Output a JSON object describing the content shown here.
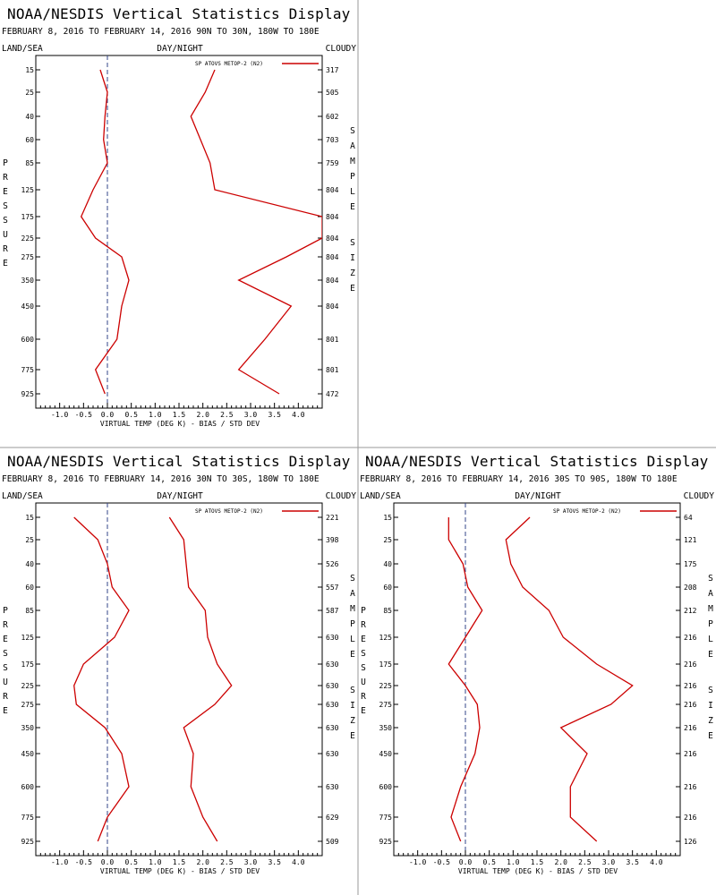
{
  "colors": {
    "background": "#ffffff",
    "line": "#cc0000",
    "frame": "#000000",
    "zero_line": "#334488",
    "divider": "#999999"
  },
  "panels": [
    {
      "title": "NOAA/NESDIS Vertical Statistics Display",
      "subtitle": "FEBRUARY 8, 2016 TO FEBRUARY 14, 2016 90N TO 30N, 180W TO 180E",
      "left_header": "LAND/SEA",
      "center_header": "DAY/NIGHT",
      "right_header": "CLOUDY",
      "y_label": "PRESSURE",
      "right_label_words": [
        "SAMPLE",
        "SIZE"
      ],
      "legend": "SP ATOVS METOP-2 (N2)",
      "x_axis_label": "VIRTUAL TEMP (DEG K) - BIAS / STD DEV",
      "x_ticks": [
        "-1.0",
        "-0.5",
        "0.0",
        "0.5",
        "1.0",
        "1.5",
        "2.0",
        "2.5",
        "3.0",
        "3.5",
        "4.0"
      ],
      "pressure_labels": [
        "15",
        "25",
        "40",
        "60",
        "85",
        "125",
        "175",
        "225",
        "275",
        "350",
        "450",
        "600",
        "775",
        "925"
      ],
      "sample_sizes": [
        "317",
        "505",
        "602",
        "703",
        "759",
        "804",
        "804",
        "804",
        "804",
        "804",
        "804",
        "801",
        "801",
        "472"
      ],
      "chart_data": {
        "type": "line",
        "title": "NOAA/NESDIS Vertical Statistics Display",
        "xlabel": "VIRTUAL TEMP (DEG K) - BIAS / STD DEV",
        "ylabel": "PRESSURE",
        "xlim": [
          -1.5,
          4.5
        ],
        "y": [
          15,
          25,
          40,
          60,
          85,
          125,
          175,
          225,
          275,
          350,
          450,
          600,
          775,
          925
        ],
        "series": [
          {
            "name": "SP ATOVS METOP-2 (N2)",
            "kind": "bias",
            "values": [
              -0.15,
              0.0,
              -0.05,
              -0.08,
              0.0,
              -0.3,
              -0.55,
              -0.25,
              0.3,
              0.45,
              0.3,
              0.2,
              -0.25,
              -0.05
            ]
          },
          {
            "name": "SP ATOVS METOP-2 (N2)",
            "kind": "std_dev",
            "values": [
              2.25,
              2.05,
              1.75,
              1.95,
              2.15,
              2.25,
              4.5,
              4.5,
              3.75,
              2.75,
              3.85,
              3.3,
              2.75,
              3.6
            ]
          }
        ]
      }
    },
    {
      "title": "NOAA/NESDIS Vertical Statistics Display",
      "subtitle": "FEBRUARY 8, 2016 TO FEBRUARY 14, 2016 30N TO 30S, 180W TO 180E",
      "left_header": "LAND/SEA",
      "center_header": "DAY/NIGHT",
      "right_header": "CLOUDY",
      "y_label": "PRESSURE",
      "right_label_words": [
        "SAMPLE",
        "SIZE"
      ],
      "legend": "SP ATOVS METOP-2 (N2)",
      "x_axis_label": "VIRTUAL TEMP (DEG K) - BIAS / STD DEV",
      "x_ticks": [
        "-1.0",
        "-0.5",
        "0.0",
        "0.5",
        "1.0",
        "1.5",
        "2.0",
        "2.5",
        "3.0",
        "3.5",
        "4.0"
      ],
      "pressure_labels": [
        "15",
        "25",
        "40",
        "60",
        "85",
        "125",
        "175",
        "225",
        "275",
        "350",
        "450",
        "600",
        "775",
        "925"
      ],
      "sample_sizes": [
        "221",
        "398",
        "526",
        "557",
        "587",
        "630",
        "630",
        "630",
        "630",
        "630",
        "630",
        "630",
        "629",
        "509"
      ],
      "chart_data": {
        "type": "line",
        "title": "NOAA/NESDIS Vertical Statistics Display",
        "xlabel": "VIRTUAL TEMP (DEG K) - BIAS / STD DEV",
        "ylabel": "PRESSURE",
        "xlim": [
          -1.5,
          4.5
        ],
        "y": [
          15,
          25,
          40,
          60,
          85,
          125,
          175,
          225,
          275,
          350,
          450,
          600,
          775,
          925
        ],
        "series": [
          {
            "name": "SP ATOVS METOP-2 (N2)",
            "kind": "bias",
            "values": [
              -0.7,
              -0.2,
              0.0,
              0.1,
              0.45,
              0.15,
              -0.5,
              -0.7,
              -0.65,
              -0.05,
              0.3,
              0.45,
              0.0,
              -0.2
            ]
          },
          {
            "name": "SP ATOVS METOP-2 (N2)",
            "kind": "std_dev",
            "values": [
              1.3,
              1.6,
              1.65,
              1.7,
              2.05,
              2.1,
              2.3,
              2.6,
              2.25,
              1.6,
              1.8,
              1.75,
              2.0,
              2.3
            ]
          }
        ]
      }
    },
    {
      "title": "NOAA/NESDIS Vertical Statistics Display",
      "subtitle": "FEBRUARY 8, 2016 TO FEBRUARY 14, 2016 30S TO 90S, 180W TO 180E",
      "left_header": "LAND/SEA",
      "center_header": "DAY/NIGHT",
      "right_header": "CLOUDY",
      "y_label": "PRESSURE",
      "right_label_words": [
        "SAMPLE",
        "SIZE"
      ],
      "legend": "SP ATOVS METOP-2 (N2)",
      "x_axis_label": "VIRTUAL TEMP (DEG K) - BIAS / STD DEV",
      "x_ticks": [
        "-1.0",
        "-0.5",
        "0.0",
        "0.5",
        "1.0",
        "1.5",
        "2.0",
        "2.5",
        "3.0",
        "3.5",
        "4.0"
      ],
      "pressure_labels": [
        "15",
        "25",
        "40",
        "60",
        "85",
        "125",
        "175",
        "225",
        "275",
        "350",
        "450",
        "600",
        "775",
        "925"
      ],
      "sample_sizes": [
        "64",
        "121",
        "175",
        "208",
        "212",
        "216",
        "216",
        "216",
        "216",
        "216",
        "216",
        "216",
        "216",
        "126"
      ],
      "chart_data": {
        "type": "line",
        "title": "NOAA/NESDIS Vertical Statistics Display",
        "xlabel": "VIRTUAL TEMP (DEG K) - BIAS / STD DEV",
        "ylabel": "PRESSURE",
        "xlim": [
          -1.5,
          4.5
        ],
        "y": [
          15,
          25,
          40,
          60,
          85,
          125,
          175,
          225,
          275,
          350,
          450,
          600,
          775,
          925
        ],
        "series": [
          {
            "name": "SP ATOVS METOP-2 (N2)",
            "kind": "bias",
            "values": [
              -0.35,
              -0.35,
              -0.05,
              0.05,
              0.35,
              0.0,
              -0.35,
              0.0,
              0.25,
              0.3,
              0.2,
              -0.1,
              -0.3,
              -0.1
            ]
          },
          {
            "name": "SP ATOVS METOP-2 (N2)",
            "kind": "std_dev",
            "values": [
              1.35,
              0.85,
              0.95,
              1.2,
              1.75,
              2.05,
              2.75,
              3.5,
              3.05,
              2.0,
              2.55,
              2.2,
              2.2,
              2.75
            ]
          }
        ]
      }
    }
  ]
}
